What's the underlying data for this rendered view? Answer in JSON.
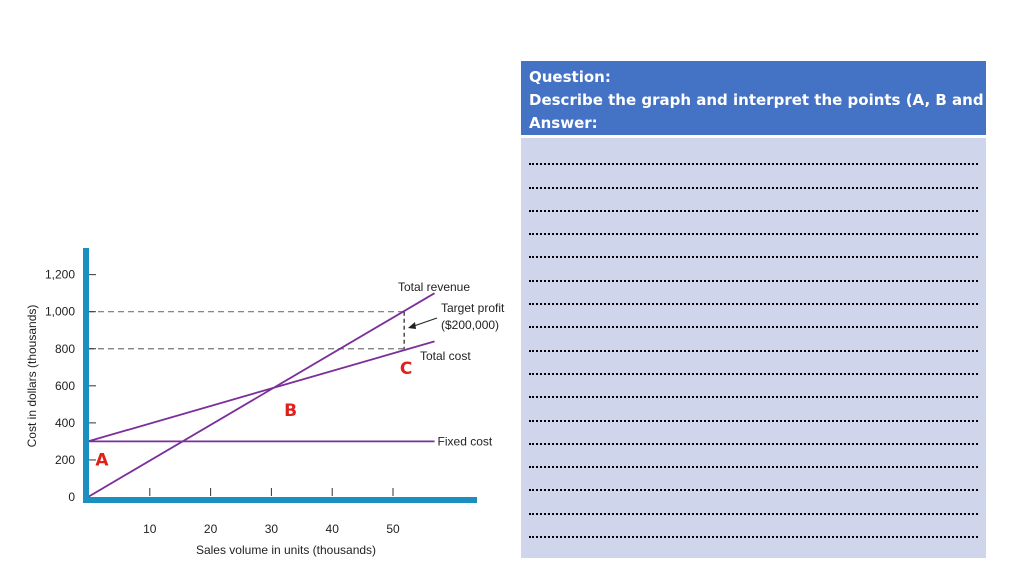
{
  "question": {
    "title": "Question:",
    "prompt": "Describe the graph and interpret the points (A, B and C)",
    "answer_label": "Answer:",
    "answer_line_count": 17,
    "header_color": "#4472c4",
    "panel_color": "#cfd5ea"
  },
  "chart_data": {
    "type": "line",
    "xlabel": "Sales volume in units (thousands)",
    "ylabel": "Cost in dollars (thousands)",
    "xlim": [
      0,
      64
    ],
    "ylim": [
      0,
      1300
    ],
    "x_ticks": [
      10,
      20,
      30,
      40,
      50
    ],
    "y_ticks": [
      0,
      200,
      400,
      600,
      800,
      1000,
      1200
    ],
    "y_tick_labels": [
      "0",
      "200",
      "400",
      "600",
      "800",
      "1,000",
      "1,200"
    ],
    "axis_color": "#1a8fc0",
    "line_color": "#7b2f9a",
    "series": [
      {
        "name": "Total revenue",
        "points": [
          [
            0,
            0
          ],
          [
            57,
            1100
          ]
        ]
      },
      {
        "name": "Total cost",
        "points": [
          [
            0,
            300
          ],
          [
            57,
            840
          ]
        ]
      },
      {
        "name": "Fixed cost",
        "points": [
          [
            0,
            300
          ],
          [
            57,
            300
          ]
        ]
      }
    ],
    "reference_lines": [
      {
        "y": 1000,
        "x_end": 52
      },
      {
        "y": 800,
        "x_end": 52
      }
    ],
    "annotations": [
      {
        "text": "Target profit",
        "text2": "($200,000)",
        "x": 52,
        "y_top": 1000,
        "y_bottom": 800
      }
    ],
    "points": [
      {
        "label": "A",
        "x": 0,
        "y": 300
      },
      {
        "label": "B",
        "x": 32,
        "y": 600
      },
      {
        "label": "C",
        "x": 52,
        "y": 800
      }
    ],
    "point_label_color": "#e0201b"
  }
}
